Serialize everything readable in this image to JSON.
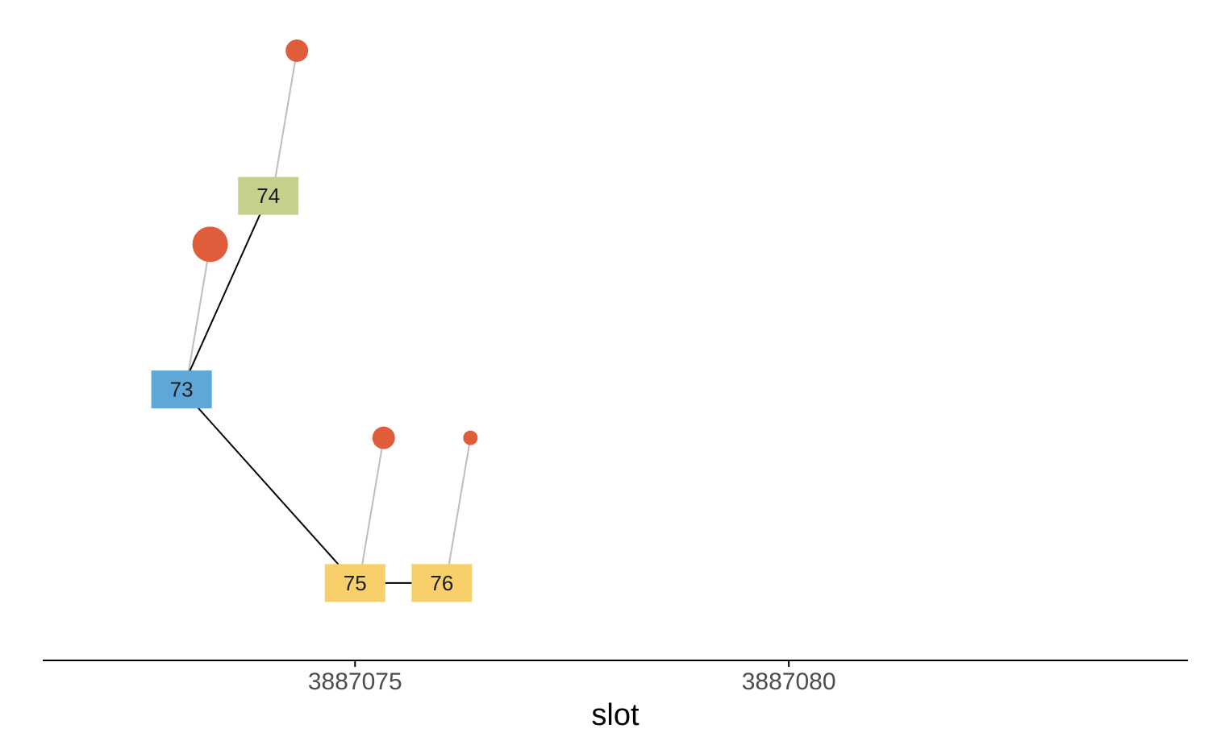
{
  "chart_data": {
    "type": "scatter",
    "title": "",
    "xlabel": "slot",
    "ylabel": "",
    "xlim": [
      3887071.4,
      3887084.6
    ],
    "ylim": [
      -1.4,
      1.75
    ],
    "x_ticks": [
      3887075,
      3887080
    ],
    "x_tick_labels": [
      "3887075",
      "3887080"
    ],
    "grid": false,
    "legend": "none",
    "nodes": [
      {
        "id": "73",
        "label": "73",
        "x": 3887073.0,
        "y": 0.0,
        "color": "#5ea7d8"
      },
      {
        "id": "74",
        "label": "74",
        "x": 3887074.0,
        "y": 1.0,
        "color": "#c3d18c"
      },
      {
        "id": "75",
        "label": "75",
        "x": 3887075.0,
        "y": -1.0,
        "color": "#f7d06a"
      },
      {
        "id": "76",
        "label": "76",
        "x": 3887076.0,
        "y": -1.0,
        "color": "#f7d06a"
      }
    ],
    "edges": [
      {
        "from": "73",
        "to": "74"
      },
      {
        "from": "73",
        "to": "75"
      },
      {
        "from": "75",
        "to": "76"
      }
    ],
    "markers": [
      {
        "node": "73",
        "x": 3887073.33,
        "y": 0.75,
        "size": "large",
        "color": "#e05d3c"
      },
      {
        "node": "74",
        "x": 3887074.33,
        "y": 1.75,
        "size": "medium",
        "color": "#e05d3c"
      },
      {
        "node": "75",
        "x": 3887075.33,
        "y": -0.25,
        "size": "medium",
        "color": "#e05d3c"
      },
      {
        "node": "76",
        "x": 3887076.33,
        "y": -0.25,
        "size": "small",
        "color": "#e05d3c"
      }
    ],
    "edge_color": "#000000",
    "marker_link_color": "#bdbdbd",
    "axis_color": "#000000"
  }
}
